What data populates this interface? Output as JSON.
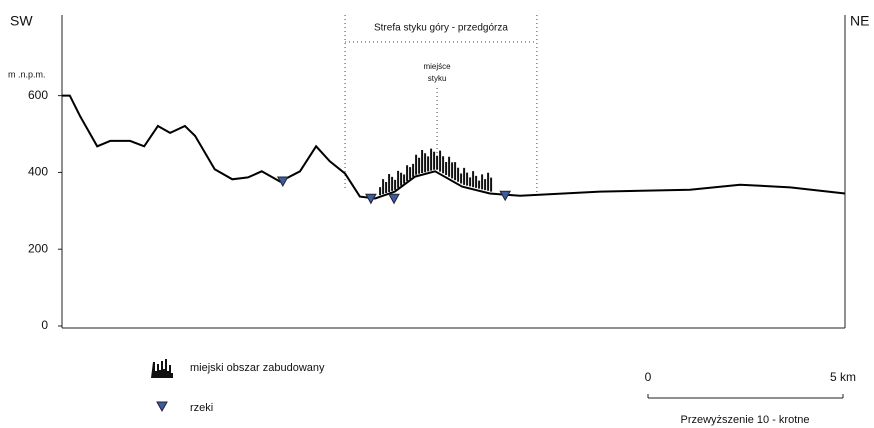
{
  "chart_data": {
    "type": "line",
    "left_label": "SW",
    "right_label": "NE",
    "y_label": "m .n.p.m.",
    "xlim": [
      0,
      20
    ],
    "ylim": [
      0,
      810
    ],
    "yticks": [
      0,
      200,
      400,
      600
    ],
    "color": "#000000",
    "x": [
      0,
      0.2,
      0.46,
      0.9,
      1.23,
      1.74,
      2.1,
      2.45,
      2.76,
      3.14,
      3.4,
      3.9,
      4.35,
      4.75,
      5.1,
      5.57,
      6.08,
      6.49,
      6.84,
      7.23,
      7.61,
      8,
      8.5,
      9.02,
      9.53,
      10.22,
      10.93,
      11.7,
      13.74,
      16.04,
      17.32,
      18.6,
      20
    ],
    "values": [
      600,
      600,
      547,
      468,
      482,
      482,
      468,
      521,
      503,
      521,
      495,
      408,
      382,
      387,
      403,
      376,
      403,
      468,
      429,
      397,
      337,
      332,
      350,
      389,
      403,
      363,
      345,
      339,
      350,
      355,
      368,
      361,
      345
    ],
    "rivers": {
      "name": "rzeki",
      "color": "#3d5c9e",
      "x": [
        5.64,
        7.89,
        8.48,
        11.32
      ],
      "values": [
        375,
        330,
        330,
        338
      ]
    },
    "urban": {
      "name": "miejski obszar zabudowany",
      "x": [
        8.1,
        10.95
      ]
    },
    "zone": {
      "label": "Strefa styku góry - przedgórza",
      "x": [
        7.23,
        12.13
      ]
    },
    "contact": {
      "lines": [
        "miejśce",
        "styku"
      ],
      "x": 9.58
    },
    "scale": {
      "ticks": [
        {
          "value": 0,
          "label": "0"
        },
        {
          "value": 5,
          "label": "5 km"
        }
      ],
      "note": "Przewyższenie 10 - krotne"
    }
  }
}
